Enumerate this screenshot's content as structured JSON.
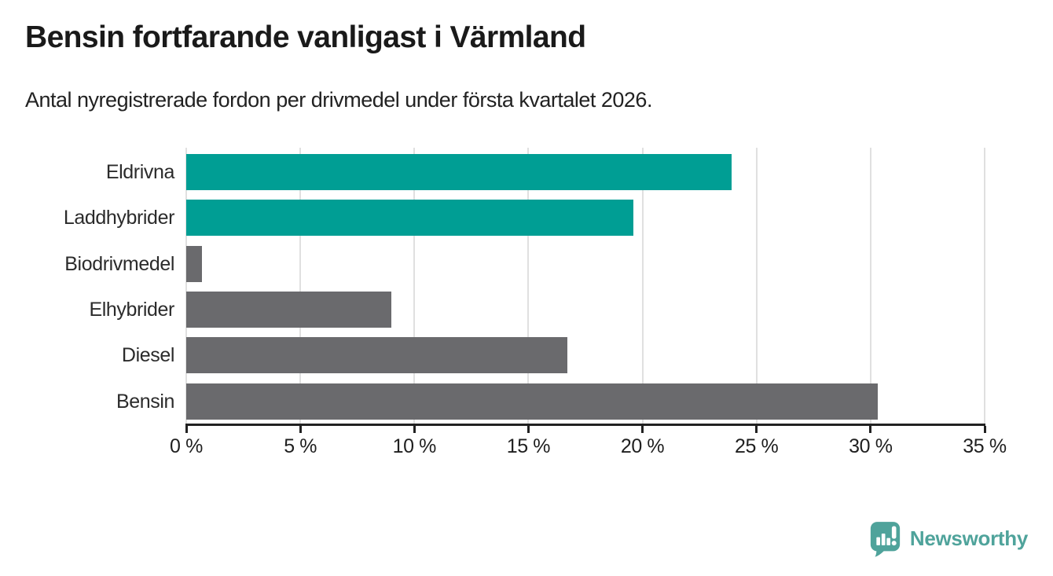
{
  "title": "Bensin fortfarande vanligast i Värmland",
  "subtitle": "Antal nyregistrerade fordon per drivmedel under första kvartalet 2026.",
  "chart_data": {
    "type": "bar",
    "orientation": "horizontal",
    "title": "Bensin fortfarande vanligast i Värmland",
    "subtitle": "Antal nyregistrerade fordon per drivmedel under första kvartalet 2026.",
    "categories": [
      "Eldrivna",
      "Laddhybrider",
      "Biodrivmedel",
      "Elhybrider",
      "Diesel",
      "Bensin"
    ],
    "values": [
      23.9,
      19.6,
      0.7,
      9.0,
      16.7,
      30.3
    ],
    "unit": "%",
    "highlighted_categories": [
      "Eldrivna",
      "Laddhybrider"
    ],
    "xlim": [
      0,
      35
    ],
    "x_ticks": [
      0,
      5,
      10,
      15,
      20,
      25,
      30,
      35
    ],
    "x_tick_labels": [
      "0 %",
      "5 %",
      "10 %",
      "15 %",
      "20 %",
      "25 %",
      "30 %",
      "35 %"
    ],
    "grid": "vertical",
    "legend": "none",
    "xlabel": "",
    "ylabel": ""
  },
  "colors": {
    "highlight_bar": "#009e94",
    "default_bar": "#6a6a6d",
    "gridline": "#e0e0e0",
    "axis": "#222222",
    "brand": "#4fa39b"
  },
  "branding": {
    "name": "Newsworthy",
    "logo_icon": "bar-chart-speech-bubble"
  }
}
